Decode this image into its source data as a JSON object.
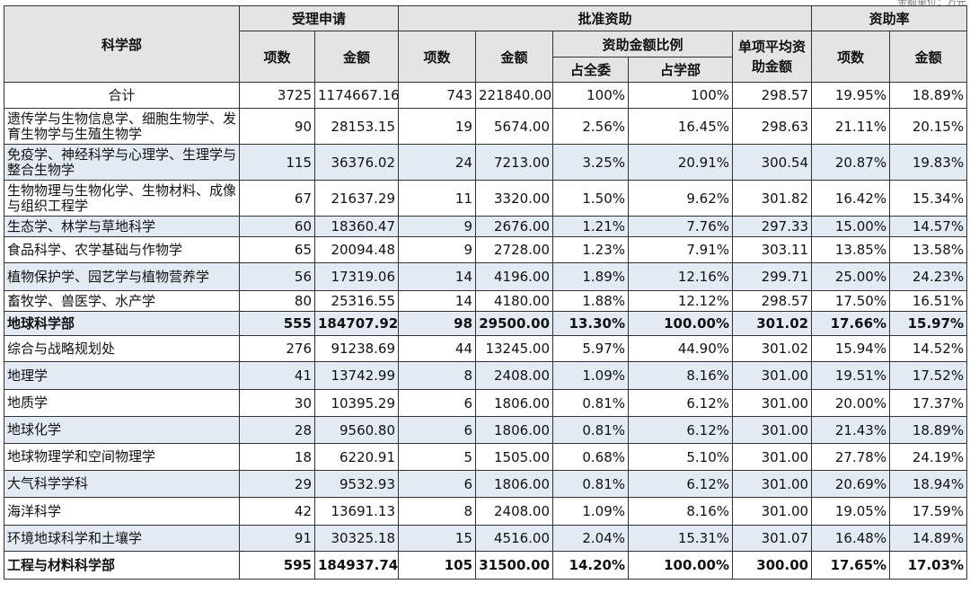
{
  "header": {
    "unit_note": "金额单位：万元",
    "dept": "科学部",
    "group_apply": "受理申请",
    "group_approve": "批准资助",
    "group_rate": "资助率",
    "count": "项数",
    "amount": "金额",
    "ratio": "资助金额比例",
    "share_all": "占全委",
    "share_dept": "占学部",
    "avg": "单项平均资助金额"
  },
  "rows": [
    {
      "name": "合计",
      "apply_n": "3725",
      "apply_amt": "1174667.16",
      "appr_n": "743",
      "appr_amt": "221840.00",
      "share_all": "100%",
      "share_dept": "100%",
      "avg": "298.57",
      "rate_n": "19.95%",
      "rate_amt": "18.89%",
      "shade": false,
      "bold": false,
      "center": true
    },
    {
      "name": "遗传学与生物信息学、细胞生物学、发育生物学与生殖生物学",
      "apply_n": "90",
      "apply_amt": "28153.15",
      "appr_n": "19",
      "appr_amt": "5674.00",
      "share_all": "2.56%",
      "share_dept": "16.45%",
      "avg": "298.63",
      "rate_n": "21.11%",
      "rate_amt": "20.15%",
      "shade": false,
      "bold": false,
      "center": false
    },
    {
      "name": "免疫学、神经科学与心理学、生理学与整合生物学",
      "apply_n": "115",
      "apply_amt": "36376.02",
      "appr_n": "24",
      "appr_amt": "7213.00",
      "share_all": "3.25%",
      "share_dept": "20.91%",
      "avg": "300.54",
      "rate_n": "20.87%",
      "rate_amt": "19.83%",
      "shade": true,
      "bold": false,
      "center": false
    },
    {
      "name": "生物物理与生物化学、生物材料、成像与组织工程学",
      "apply_n": "67",
      "apply_amt": "21637.29",
      "appr_n": "11",
      "appr_amt": "3320.00",
      "share_all": "1.50%",
      "share_dept": "9.62%",
      "avg": "301.82",
      "rate_n": "16.42%",
      "rate_amt": "15.34%",
      "shade": false,
      "bold": false,
      "center": false
    },
    {
      "name": "生态学、林学与草地科学",
      "apply_n": "60",
      "apply_amt": "18360.47",
      "appr_n": "9",
      "appr_amt": "2676.00",
      "share_all": "1.21%",
      "share_dept": "7.76%",
      "avg": "297.33",
      "rate_n": "15.00%",
      "rate_amt": "14.57%",
      "shade": true,
      "bold": false,
      "center": false
    },
    {
      "name": "食品科学、农学基础与作物学",
      "apply_n": "65",
      "apply_amt": "20094.48",
      "appr_n": "9",
      "appr_amt": "2728.00",
      "share_all": "1.23%",
      "share_dept": "7.91%",
      "avg": "303.11",
      "rate_n": "13.85%",
      "rate_amt": "13.58%",
      "shade": false,
      "bold": false,
      "center": false
    },
    {
      "name": "植物保护学、园艺学与植物营养学",
      "apply_n": "56",
      "apply_amt": "17319.06",
      "appr_n": "14",
      "appr_amt": "4196.00",
      "share_all": "1.89%",
      "share_dept": "12.16%",
      "avg": "299.71",
      "rate_n": "25.00%",
      "rate_amt": "24.23%",
      "shade": true,
      "bold": false,
      "center": false
    },
    {
      "name": "畜牧学、兽医学、水产学",
      "apply_n": "80",
      "apply_amt": "25316.55",
      "appr_n": "14",
      "appr_amt": "4180.00",
      "share_all": "1.88%",
      "share_dept": "12.12%",
      "avg": "298.57",
      "rate_n": "17.50%",
      "rate_amt": "16.51%",
      "shade": false,
      "bold": false,
      "center": false
    },
    {
      "name": "地球科学部",
      "apply_n": "555",
      "apply_amt": "184707.92",
      "appr_n": "98",
      "appr_amt": "29500.00",
      "share_all": "13.30%",
      "share_dept": "100.00%",
      "avg": "301.02",
      "rate_n": "17.66%",
      "rate_amt": "15.97%",
      "shade": true,
      "bold": true,
      "center": false
    },
    {
      "name": "综合与战略规划处",
      "apply_n": "276",
      "apply_amt": "91238.69",
      "appr_n": "44",
      "appr_amt": "13245.00",
      "share_all": "5.97%",
      "share_dept": "44.90%",
      "avg": "301.02",
      "rate_n": "15.94%",
      "rate_amt": "14.52%",
      "shade": false,
      "bold": false,
      "center": false
    },
    {
      "name": "地理学",
      "apply_n": "41",
      "apply_amt": "13742.99",
      "appr_n": "8",
      "appr_amt": "2408.00",
      "share_all": "1.09%",
      "share_dept": "8.16%",
      "avg": "301.00",
      "rate_n": "19.51%",
      "rate_amt": "17.52%",
      "shade": true,
      "bold": false,
      "center": false
    },
    {
      "name": "地质学",
      "apply_n": "30",
      "apply_amt": "10395.29",
      "appr_n": "6",
      "appr_amt": "1806.00",
      "share_all": "0.81%",
      "share_dept": "6.12%",
      "avg": "301.00",
      "rate_n": "20.00%",
      "rate_amt": "17.37%",
      "shade": false,
      "bold": false,
      "center": false
    },
    {
      "name": "地球化学",
      "apply_n": "28",
      "apply_amt": "9560.80",
      "appr_n": "6",
      "appr_amt": "1806.00",
      "share_all": "0.81%",
      "share_dept": "6.12%",
      "avg": "301.00",
      "rate_n": "21.43%",
      "rate_amt": "18.89%",
      "shade": true,
      "bold": false,
      "center": false
    },
    {
      "name": "地球物理学和空间物理学",
      "apply_n": "18",
      "apply_amt": "6220.91",
      "appr_n": "5",
      "appr_amt": "1505.00",
      "share_all": "0.68%",
      "share_dept": "5.10%",
      "avg": "301.00",
      "rate_n": "27.78%",
      "rate_amt": "24.19%",
      "shade": false,
      "bold": false,
      "center": false
    },
    {
      "name": "大气科学学科",
      "apply_n": "29",
      "apply_amt": "9532.93",
      "appr_n": "6",
      "appr_amt": "1806.00",
      "share_all": "0.81%",
      "share_dept": "6.12%",
      "avg": "301.00",
      "rate_n": "20.69%",
      "rate_amt": "18.94%",
      "shade": true,
      "bold": false,
      "center": false
    },
    {
      "name": "海洋科学",
      "apply_n": "42",
      "apply_amt": "13691.13",
      "appr_n": "8",
      "appr_amt": "2408.00",
      "share_all": "1.09%",
      "share_dept": "8.16%",
      "avg": "301.00",
      "rate_n": "19.05%",
      "rate_amt": "17.59%",
      "shade": false,
      "bold": false,
      "center": false
    },
    {
      "name": "环境地球科学和土壤学",
      "apply_n": "91",
      "apply_amt": "30325.18",
      "appr_n": "15",
      "appr_amt": "4516.00",
      "share_all": "2.04%",
      "share_dept": "15.31%",
      "avg": "301.07",
      "rate_n": "16.48%",
      "rate_amt": "14.89%",
      "shade": true,
      "bold": false,
      "center": false
    },
    {
      "name": "工程与材料科学部",
      "apply_n": "595",
      "apply_amt": "184937.74",
      "appr_n": "105",
      "appr_amt": "31500.00",
      "share_all": "14.20%",
      "share_dept": "100.00%",
      "avg": "300.00",
      "rate_n": "17.65%",
      "rate_amt": "17.03%",
      "shade": false,
      "bold": true,
      "center": false
    }
  ]
}
